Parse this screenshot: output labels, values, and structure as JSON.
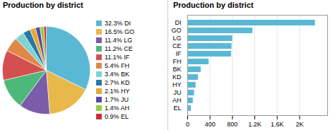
{
  "chart_data": [
    {
      "type": "pie",
      "title": "Production by district",
      "categories": [
        "DI",
        "GO",
        "LG",
        "CE",
        "IF",
        "FH",
        "BK",
        "KD",
        "HY",
        "JU",
        "AH",
        "EL"
      ],
      "values": [
        32.3,
        16.5,
        11.4,
        11.2,
        11.1,
        5.4,
        3.4,
        2.7,
        2.1,
        1.7,
        1.4,
        0.9
      ],
      "value_labels": [
        "32.3%",
        "16.5%",
        "11.4%",
        "11.2%",
        "11.1%",
        "5.4%",
        "3.4%",
        "2.7%",
        "2.1%",
        "1.7%",
        "1.4%",
        "0.9%"
      ],
      "colors": [
        "#5bb8d4",
        "#e8b84b",
        "#7a5ca8",
        "#4db87a",
        "#d45050",
        "#e08848",
        "#7ed4d4",
        "#2878a8",
        "#e8a830",
        "#5848a8",
        "#90d040",
        "#c83030"
      ],
      "legend": "right"
    },
    {
      "type": "bar",
      "title": "Production by district",
      "orientation": "horizontal",
      "categories": [
        "DI",
        "GO",
        "LG",
        "CE",
        "IF",
        "FH",
        "BK",
        "KD",
        "HY",
        "JU",
        "AH",
        "EL"
      ],
      "values": [
        2280,
        1163,
        804,
        790,
        782,
        381,
        240,
        190,
        148,
        120,
        99,
        63
      ],
      "color": "#5bb8d4",
      "xlim": [
        0,
        2500
      ],
      "xticks": [
        0,
        400,
        800,
        {
          "value": 1200,
          "label": "1.2K"
        },
        {
          "value": 1600,
          "label": "1.6K"
        },
        {
          "value": 2000,
          "label": "2K"
        }
      ],
      "grid": true
    }
  ]
}
